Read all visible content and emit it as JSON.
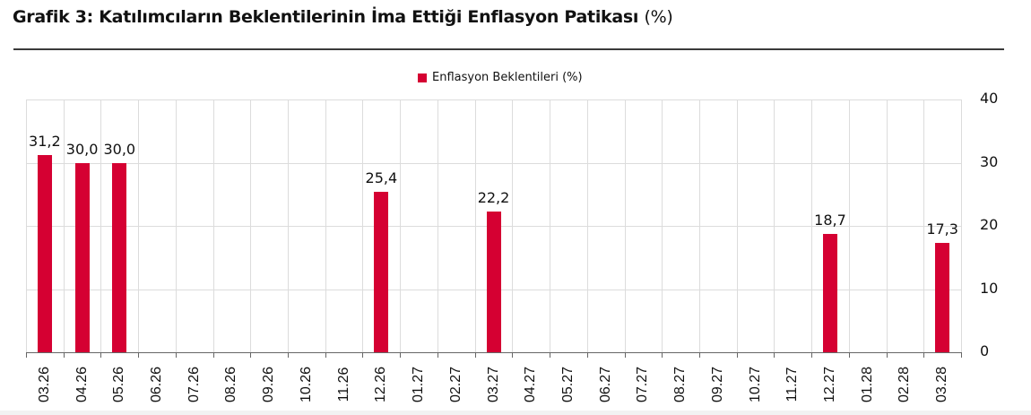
{
  "header": {
    "title": "Grafik 3: Katılımcıların Beklentilerinin İma Ettiği Enflasyon Patikası",
    "title_unit": "(%)"
  },
  "legend": {
    "label": "Enflasyon Beklentileri (%)",
    "color": "#d50032"
  },
  "chart_data": {
    "type": "bar",
    "title": "Grafik 3: Katılımcıların Beklentilerinin İma Ettiği Enflasyon Patikası (%)",
    "xlabel": "",
    "ylabel": "",
    "ylim": [
      0,
      40
    ],
    "yticks": [
      0,
      10,
      20,
      30,
      40
    ],
    "y_axis_position": "right",
    "grid": true,
    "legend_position": "top-center",
    "categories": [
      "03.26",
      "04.26",
      "05.26",
      "06.26",
      "07.26",
      "08.26",
      "09.26",
      "10.26",
      "11.26",
      "12.26",
      "01.27",
      "02.27",
      "03.27",
      "04.27",
      "05.27",
      "06.27",
      "07.27",
      "08.27",
      "09.27",
      "10.27",
      "11.27",
      "12.27",
      "01.28",
      "02.28",
      "03.28"
    ],
    "series": [
      {
        "name": "Enflasyon Beklentileri (%)",
        "color": "#d50032",
        "values": [
          31.2,
          30.0,
          30.0,
          null,
          null,
          null,
          null,
          null,
          null,
          25.4,
          null,
          null,
          22.2,
          null,
          null,
          null,
          null,
          null,
          null,
          null,
          null,
          18.7,
          null,
          null,
          17.3
        ],
        "labels": [
          "31,2",
          "30,0",
          "30,0",
          "",
          "",
          "",
          "",
          "",
          "",
          "25,4",
          "",
          "",
          "22,2",
          "",
          "",
          "",
          "",
          "",
          "",
          "",
          "",
          "18,7",
          "",
          "",
          "17,3"
        ]
      }
    ]
  }
}
